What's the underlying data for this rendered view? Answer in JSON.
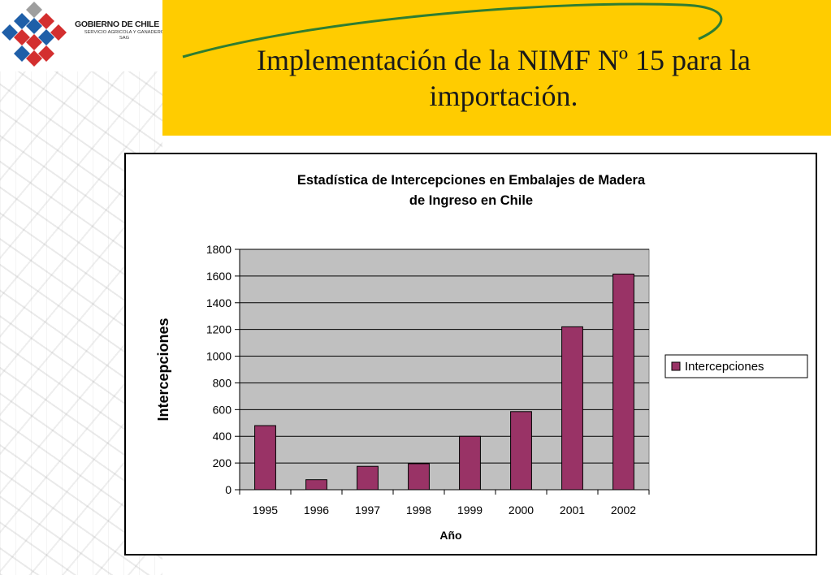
{
  "logo": {
    "line1": "GOBIERNO DE CHILE",
    "line2": "SERVICIO AGRICOLA Y GANADERO",
    "line3": "SAG"
  },
  "slide": {
    "title_line1": "Implementación de la NIMF Nº 15 para la",
    "title_line2": "importación."
  },
  "colors": {
    "banner": "#ffcc00",
    "swoosh": "#2e7d32",
    "bar": "#993366",
    "plot_area": "#c0c0c0"
  },
  "chart_data": {
    "type": "bar",
    "title_line1": "Estadística de Intercepciones en Embalajes de Madera",
    "title_line2": "de Ingreso en Chile",
    "xlabel": "Año",
    "ylabel": "Intercepciones",
    "categories": [
      "1995",
      "1996",
      "1997",
      "1998",
      "1999",
      "2000",
      "2001",
      "2002"
    ],
    "series": [
      {
        "name": "Intercepciones",
        "values": [
          480,
          75,
          175,
          195,
          400,
          585,
          1220,
          1615
        ]
      }
    ],
    "ylim": [
      0,
      1800
    ],
    "yticks": [
      0,
      200,
      400,
      600,
      800,
      1000,
      1200,
      1400,
      1600,
      1800
    ],
    "grid": true,
    "legend_position": "right"
  }
}
